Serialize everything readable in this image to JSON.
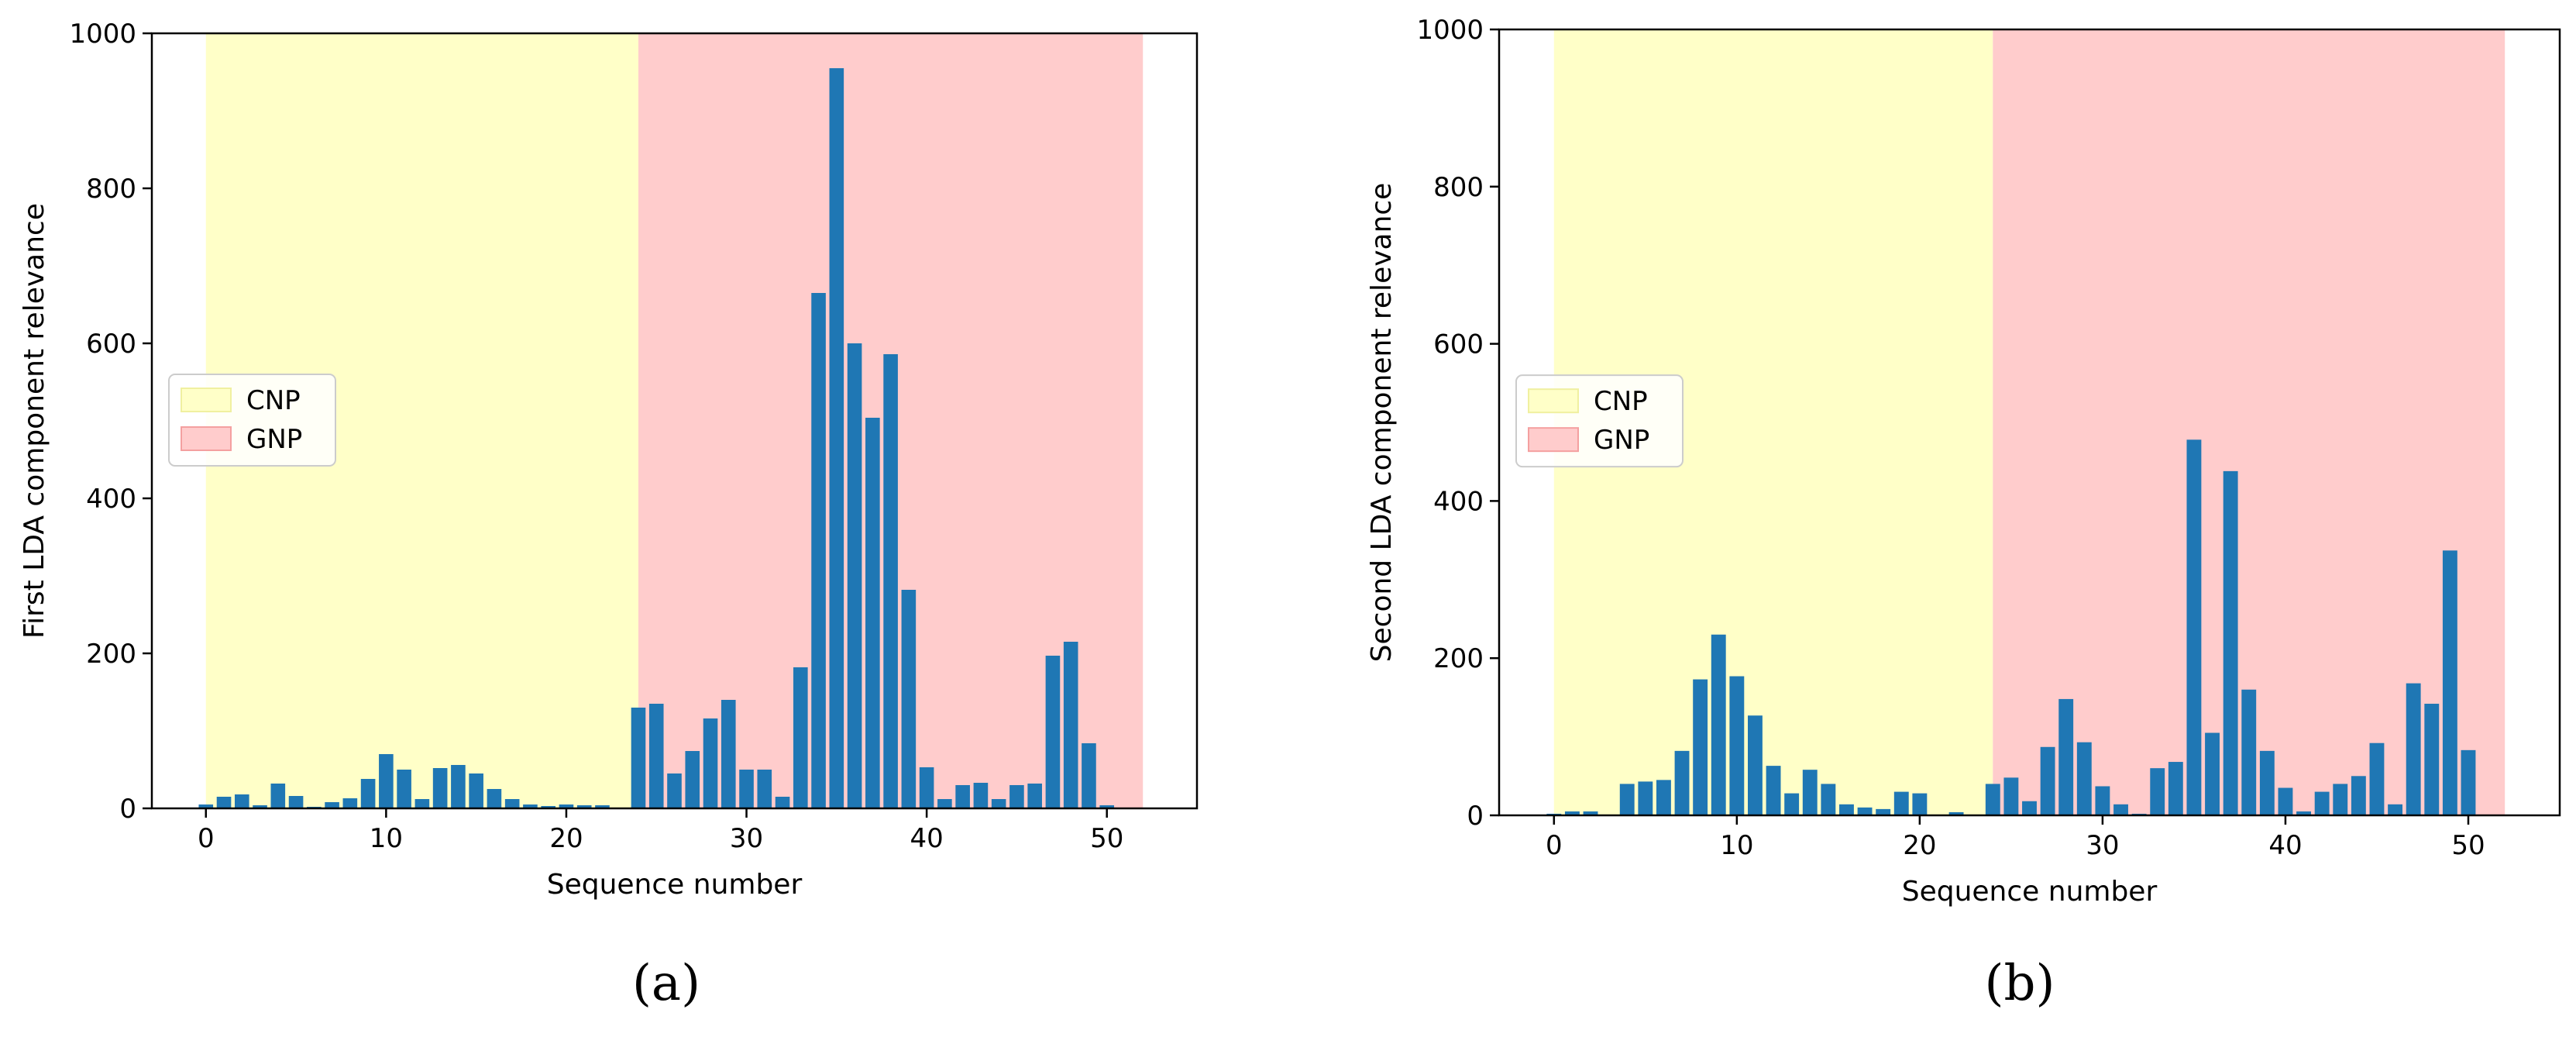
{
  "chart_data": [
    {
      "type": "bar",
      "panel_label": "(a)",
      "xlabel": "Sequence number",
      "ylabel": "First LDA component relevance",
      "xlim": [
        -3,
        55
      ],
      "ylim": [
        0,
        1000
      ],
      "xticks": [
        0,
        10,
        20,
        30,
        40,
        50
      ],
      "yticks": [
        0,
        200,
        400,
        600,
        800,
        1000
      ],
      "legend_position": "center-left",
      "regions": [
        {
          "name": "CNP",
          "x_start": 0,
          "x_end": 24,
          "color": "#ffffc8"
        },
        {
          "name": "GNP",
          "x_start": 24,
          "x_end": 52,
          "color": "#ffcccc"
        }
      ],
      "bar_color": "#1f77b4",
      "x": [
        0,
        1,
        2,
        3,
        4,
        5,
        6,
        7,
        8,
        9,
        10,
        11,
        12,
        13,
        14,
        15,
        16,
        17,
        18,
        19,
        20,
        21,
        22,
        23,
        24,
        25,
        26,
        27,
        28,
        29,
        30,
        31,
        32,
        33,
        34,
        35,
        36,
        37,
        38,
        39,
        40,
        41,
        42,
        43,
        44,
        45,
        46,
        47,
        48,
        49,
        50
      ],
      "values": [
        5,
        15,
        18,
        4,
        32,
        16,
        2,
        8,
        13,
        38,
        70,
        50,
        12,
        52,
        56,
        45,
        25,
        12,
        5,
        3,
        5,
        4,
        4,
        0,
        130,
        135,
        45,
        74,
        116,
        140,
        50,
        50,
        15,
        182,
        665,
        955,
        600,
        504,
        586,
        282,
        53,
        12,
        30,
        33,
        12,
        30,
        32,
        197,
        215,
        84,
        4
      ]
    },
    {
      "type": "bar",
      "panel_label": "(b)",
      "xlabel": "Sequence number",
      "ylabel": "Second LDA component relevance",
      "xlim": [
        -3,
        55
      ],
      "ylim": [
        0,
        1000
      ],
      "xticks": [
        0,
        10,
        20,
        30,
        40,
        50
      ],
      "yticks": [
        0,
        200,
        400,
        600,
        800,
        1000
      ],
      "legend_position": "center-left",
      "regions": [
        {
          "name": "CNP",
          "x_start": 0,
          "x_end": 24,
          "color": "#ffffc8"
        },
        {
          "name": "GNP",
          "x_start": 24,
          "x_end": 52,
          "color": "#ffcccc"
        }
      ],
      "bar_color": "#1f77b4",
      "x": [
        0,
        1,
        2,
        3,
        4,
        5,
        6,
        7,
        8,
        9,
        10,
        11,
        12,
        13,
        14,
        15,
        16,
        17,
        18,
        19,
        20,
        21,
        22,
        23,
        24,
        25,
        26,
        27,
        28,
        29,
        30,
        31,
        32,
        33,
        34,
        35,
        36,
        37,
        38,
        39,
        40,
        41,
        42,
        43,
        44,
        45,
        46,
        47,
        48,
        49,
        50
      ],
      "values": [
        2,
        5,
        5,
        1,
        40,
        43,
        45,
        82,
        173,
        230,
        177,
        127,
        63,
        28,
        58,
        40,
        14,
        10,
        8,
        30,
        28,
        1,
        4,
        1,
        40,
        48,
        18,
        87,
        148,
        93,
        37,
        14,
        2,
        60,
        68,
        478,
        105,
        438,
        160,
        82,
        35,
        5,
        30,
        40,
        50,
        92,
        14,
        168,
        142,
        337,
        83
      ]
    }
  ]
}
